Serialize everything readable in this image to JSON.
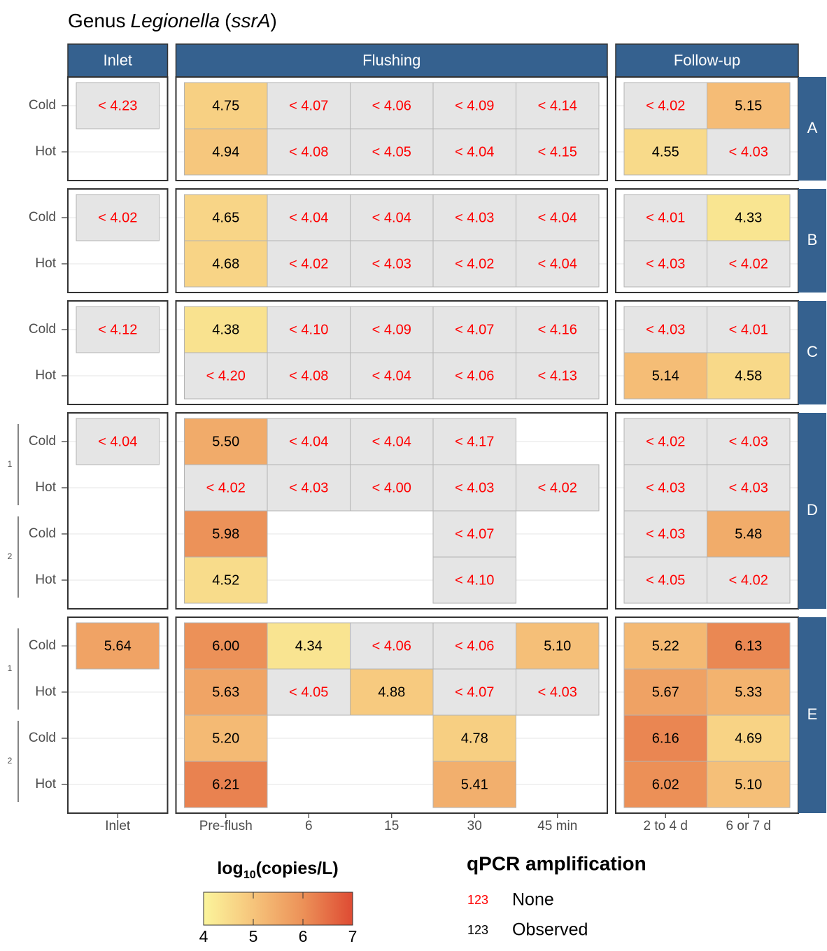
{
  "chart_data": {
    "type": "heatmap",
    "title": [
      {
        "text": "Genus"
      },
      {
        "text": "Legionella",
        "italic": true
      },
      {
        "text": "("
      },
      {
        "text": "ssrA",
        "italic": true
      },
      {
        "text": ")"
      }
    ],
    "x_groups": [
      {
        "label": "Inlet",
        "categories": [
          "Inlet"
        ]
      },
      {
        "label": "Flushing",
        "categories": [
          "Pre-flush",
          "6",
          "15",
          "30",
          "45 min"
        ]
      },
      {
        "label": "Follow-up",
        "categories": [
          "2 to 4 d",
          "6 or 7 d"
        ]
      }
    ],
    "undetected_fill": "#e5e5e5",
    "strip_color": "#35618f",
    "panels": [
      {
        "label": "A",
        "lines": [
          [
            "Cold",
            "Hot"
          ]
        ],
        "values": [
          [
            4.23,
            4.75,
            4.07,
            4.06,
            4.09,
            4.14,
            4.02,
            5.15
          ],
          [
            null,
            4.94,
            4.08,
            4.05,
            4.04,
            4.15,
            4.55,
            4.03
          ]
        ],
        "value_labels": [
          [
            "< 4.23",
            "4.75",
            "< 4.07",
            "< 4.06",
            "< 4.09",
            "< 4.14",
            "< 4.02",
            "5.15"
          ],
          [
            null,
            "4.94",
            "< 4.08",
            "< 4.05",
            "< 4.04",
            "< 4.15",
            "4.55",
            "< 4.03"
          ]
        ],
        "detected": [
          [
            false,
            true,
            false,
            false,
            false,
            false,
            false,
            true
          ],
          [
            null,
            true,
            false,
            false,
            false,
            false,
            true,
            false
          ]
        ]
      },
      {
        "label": "B",
        "lines": [
          [
            "Cold",
            "Hot"
          ]
        ],
        "values": [
          [
            4.02,
            4.65,
            4.04,
            4.04,
            4.03,
            4.04,
            4.01,
            4.33
          ],
          [
            null,
            4.68,
            4.02,
            4.03,
            4.02,
            4.04,
            4.03,
            4.02
          ]
        ],
        "value_labels": [
          [
            "< 4.02",
            "4.65",
            "< 4.04",
            "< 4.04",
            "< 4.03",
            "< 4.04",
            "< 4.01",
            "4.33"
          ],
          [
            null,
            "4.68",
            "< 4.02",
            "< 4.03",
            "< 4.02",
            "< 4.04",
            "< 4.03",
            "< 4.02"
          ]
        ],
        "detected": [
          [
            false,
            true,
            false,
            false,
            false,
            false,
            false,
            true
          ],
          [
            null,
            true,
            false,
            false,
            false,
            false,
            false,
            false
          ]
        ]
      },
      {
        "label": "C",
        "lines": [
          [
            "Cold",
            "Hot"
          ]
        ],
        "values": [
          [
            4.12,
            4.38,
            4.1,
            4.09,
            4.07,
            4.16,
            4.03,
            4.01
          ],
          [
            null,
            4.2,
            4.08,
            4.04,
            4.06,
            4.13,
            5.14,
            4.58
          ]
        ],
        "value_labels": [
          [
            "< 4.12",
            "4.38",
            "< 4.10",
            "< 4.09",
            "< 4.07",
            "< 4.16",
            "< 4.03",
            "< 4.01"
          ],
          [
            null,
            "< 4.20",
            "< 4.08",
            "< 4.04",
            "< 4.06",
            "< 4.13",
            "5.14",
            "4.58"
          ]
        ],
        "detected": [
          [
            false,
            true,
            false,
            false,
            false,
            false,
            false,
            false
          ],
          [
            null,
            false,
            false,
            false,
            false,
            false,
            true,
            true
          ]
        ]
      },
      {
        "label": "D",
        "groups": [
          "1",
          "2"
        ],
        "lines": [
          [
            "Cold",
            "Hot"
          ],
          [
            "Cold",
            "Hot"
          ]
        ],
        "values": [
          [
            4.04,
            5.5,
            4.04,
            4.04,
            4.17,
            null,
            4.02,
            4.03
          ],
          [
            null,
            4.02,
            4.03,
            4.0,
            4.03,
            4.02,
            4.03,
            4.03
          ],
          [
            null,
            5.98,
            null,
            null,
            4.07,
            null,
            4.03,
            5.48
          ],
          [
            null,
            4.52,
            null,
            null,
            4.1,
            null,
            4.05,
            4.02
          ]
        ],
        "value_labels": [
          [
            "< 4.04",
            "5.50",
            "< 4.04",
            "< 4.04",
            "< 4.17",
            null,
            "< 4.02",
            "< 4.03"
          ],
          [
            null,
            "< 4.02",
            "< 4.03",
            "< 4.00",
            "< 4.03",
            "< 4.02",
            "< 4.03",
            "< 4.03"
          ],
          [
            null,
            "5.98",
            null,
            null,
            "< 4.07",
            null,
            "< 4.03",
            "5.48"
          ],
          [
            null,
            "4.52",
            null,
            null,
            "< 4.10",
            null,
            "< 4.05",
            "< 4.02"
          ]
        ],
        "detected": [
          [
            false,
            true,
            false,
            false,
            false,
            null,
            false,
            false
          ],
          [
            null,
            false,
            false,
            false,
            false,
            false,
            false,
            false
          ],
          [
            null,
            true,
            null,
            null,
            false,
            null,
            false,
            true
          ],
          [
            null,
            true,
            null,
            null,
            false,
            null,
            false,
            false
          ]
        ]
      },
      {
        "label": "E",
        "groups": [
          "1",
          "2"
        ],
        "lines": [
          [
            "Cold",
            "Hot"
          ],
          [
            "Cold",
            "Hot"
          ]
        ],
        "values": [
          [
            5.64,
            6.0,
            4.34,
            4.06,
            4.06,
            5.1,
            5.22,
            6.13
          ],
          [
            null,
            5.63,
            4.05,
            4.88,
            4.07,
            4.03,
            5.67,
            5.33
          ],
          [
            null,
            5.2,
            null,
            null,
            4.78,
            null,
            6.16,
            4.69
          ],
          [
            null,
            6.21,
            null,
            null,
            5.41,
            null,
            6.02,
            5.1
          ]
        ],
        "value_labels": [
          [
            "5.64",
            "6.00",
            "4.34",
            "< 4.06",
            "< 4.06",
            "5.10",
            "5.22",
            "6.13"
          ],
          [
            null,
            "5.63",
            "< 4.05",
            "4.88",
            "< 4.07",
            "< 4.03",
            "5.67",
            "5.33"
          ],
          [
            null,
            "5.20",
            null,
            null,
            "4.78",
            null,
            "6.16",
            "4.69"
          ],
          [
            null,
            "6.21",
            null,
            null,
            "5.41",
            null,
            "6.02",
            "5.10"
          ]
        ],
        "detected": [
          [
            true,
            true,
            true,
            false,
            false,
            true,
            true,
            true
          ],
          [
            null,
            true,
            false,
            true,
            false,
            false,
            true,
            true
          ],
          [
            null,
            true,
            null,
            null,
            true,
            null,
            true,
            true
          ],
          [
            null,
            true,
            null,
            null,
            true,
            null,
            true,
            true
          ]
        ]
      }
    ],
    "colorbar": {
      "title": [
        {
          "text": "log"
        },
        {
          "text": "10",
          "sub": true
        },
        {
          "text": "(copies/L)"
        }
      ],
      "lim": [
        4,
        7
      ],
      "ticks": [
        4,
        5,
        6,
        7
      ],
      "colors": [
        "#fbf59c",
        "#f6c47b",
        "#ec9158",
        "#de4b33"
      ]
    },
    "text_legend": {
      "title": "qPCR amplification",
      "entries": [
        {
          "sample": "123",
          "label": "None",
          "color": "#ff0000"
        },
        {
          "sample": "123",
          "label": "Observed",
          "color": "#000000"
        }
      ]
    }
  }
}
